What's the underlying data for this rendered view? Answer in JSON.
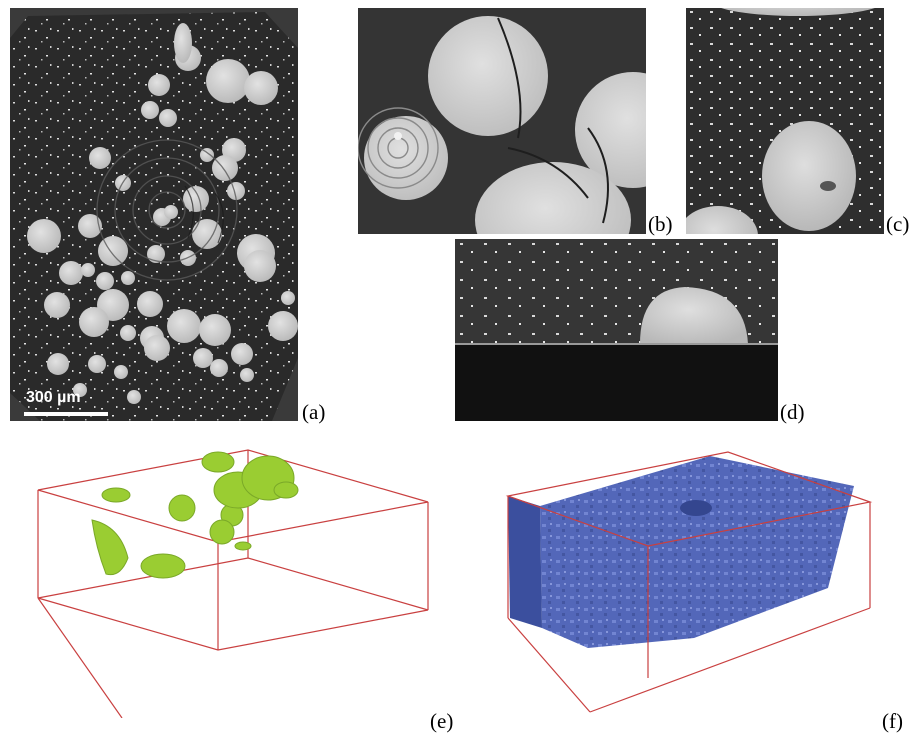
{
  "figure": {
    "panel_labels": {
      "a": "(a)",
      "b": "(b)",
      "c": "(c)",
      "d": "(d)",
      "e": "(e)",
      "f": "(f)"
    },
    "scale_bar": "300 µm"
  },
  "colors": {
    "ct_dark": "#262626",
    "ct_particle": "#cfcfcf",
    "render_green": "#9acd32",
    "render_blue": "#4a5fb5",
    "box_edge": "#c94040"
  }
}
